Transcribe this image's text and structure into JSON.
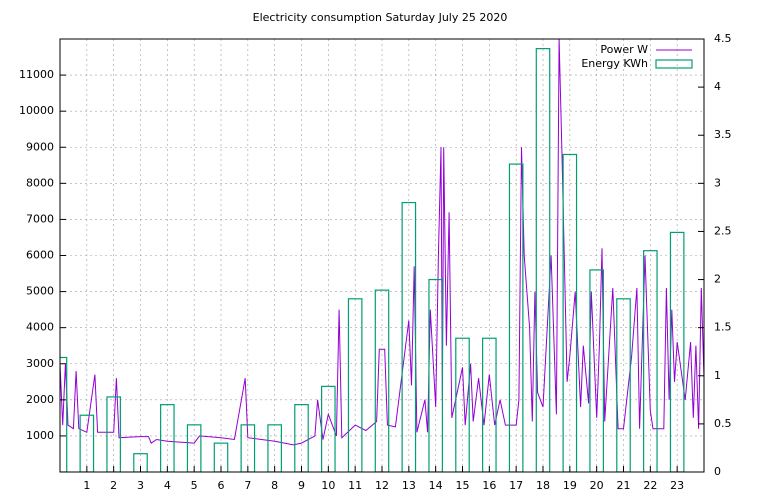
{
  "chart_data": {
    "type": "combo",
    "title": "Electricity consumption Saturday July 25 2020",
    "xlim": [
      0,
      24
    ],
    "xticks": [
      1,
      2,
      3,
      4,
      5,
      6,
      7,
      8,
      9,
      10,
      11,
      12,
      13,
      14,
      15,
      16,
      17,
      18,
      19,
      20,
      21,
      22,
      23
    ],
    "ylim": [
      0,
      12000
    ],
    "yticks": [
      1000,
      2000,
      3000,
      4000,
      5000,
      6000,
      7000,
      8000,
      9000,
      10000,
      11000
    ],
    "y2lim": [
      0,
      4.5
    ],
    "y2ticks": [
      0,
      0.5,
      1,
      1.5,
      2,
      2.5,
      3,
      3.5,
      4,
      4.5
    ],
    "grid": true,
    "legend": "top-right",
    "series": [
      {
        "name": "Power W",
        "type": "line",
        "color": "#9400d3",
        "x": [
          0,
          0.1,
          0.2,
          0.3,
          0.5,
          0.6,
          0.7,
          1.0,
          1.3,
          1.4,
          2.0,
          2.1,
          2.2,
          3.0,
          3.3,
          3.4,
          3.6,
          4.0,
          5.0,
          5.2,
          6.0,
          6.5,
          6.9,
          7.0,
          8.0,
          8.7,
          9.0,
          9.5,
          9.6,
          9.8,
          10.0,
          10.3,
          10.4,
          10.5,
          11.0,
          11.4,
          11.8,
          11.9,
          12.1,
          12.2,
          12.5,
          13.0,
          13.1,
          13.2,
          13.3,
          13.6,
          13.7,
          13.8,
          14.0,
          14.1,
          14.2,
          14.25,
          14.3,
          14.4,
          14.5,
          14.6,
          15.0,
          15.1,
          15.3,
          15.4,
          15.6,
          15.8,
          16.0,
          16.2,
          16.4,
          16.6,
          17.0,
          17.1,
          17.2,
          17.3,
          17.5,
          17.6,
          17.7,
          17.8,
          18.0,
          18.3,
          18.5,
          18.6,
          18.7,
          18.9,
          19.0,
          19.2,
          19.4,
          19.5,
          19.7,
          19.8,
          20.0,
          20.1,
          20.2,
          20.3,
          20.6,
          20.8,
          21.0,
          21.3,
          21.5,
          21.6,
          21.8,
          22.0,
          22.1,
          22.5,
          22.6,
          22.7,
          22.8,
          22.9,
          23.0,
          23.3,
          23.5,
          23.6,
          23.7,
          23.8,
          23.9,
          24
        ],
        "values": [
          3000,
          1300,
          3000,
          1300,
          1200,
          2800,
          1200,
          1100,
          2700,
          1100,
          1100,
          2600,
          950,
          980,
          980,
          800,
          900,
          850,
          800,
          1000,
          950,
          900,
          2600,
          950,
          850,
          750,
          800,
          1000,
          2000,
          900,
          1600,
          1000,
          4500,
          950,
          1300,
          1150,
          1400,
          3400,
          3400,
          1300,
          1250,
          4200,
          2400,
          5700,
          1100,
          2000,
          1100,
          4500,
          1800,
          6000,
          9000,
          2000,
          9000,
          3500,
          7200,
          1500,
          2900,
          1300,
          3000,
          1400,
          2600,
          1300,
          2700,
          1300,
          2000,
          1300,
          1300,
          2000,
          9000,
          6000,
          4000,
          1400,
          5000,
          2200,
          1800,
          6000,
          1600,
          12000,
          9000,
          2500,
          3200,
          5000,
          1800,
          3500,
          1900,
          5000,
          1500,
          3500,
          6200,
          1400,
          5100,
          1200,
          1200,
          3200,
          5100,
          1200,
          6000,
          1700,
          1200,
          1200,
          5100,
          2000,
          4500,
          2500,
          3600,
          2000,
          3600,
          1500,
          3500,
          1200,
          5100,
          2600
        ]
      },
      {
        "name": "Energy KWh",
        "type": "box",
        "axis": "y2",
        "color": "#009e73",
        "x": [
          0,
          1,
          2,
          3,
          4,
          5,
          6,
          7,
          8,
          9,
          10,
          11,
          12,
          13,
          14,
          15,
          16,
          17,
          18,
          19,
          20,
          21,
          22,
          23
        ],
        "values": [
          1.19,
          0.59,
          0.78,
          0.19,
          0.7,
          0.49,
          0.3,
          0.49,
          0.49,
          0.7,
          0.89,
          1.8,
          1.89,
          2.8,
          2.0,
          1.39,
          1.39,
          3.2,
          4.4,
          3.3,
          2.1,
          1.8,
          2.3,
          2.49
        ]
      }
    ]
  }
}
